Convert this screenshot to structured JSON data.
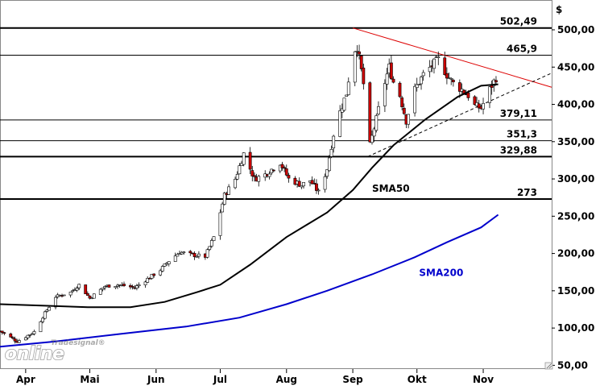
{
  "chart_data": {
    "type": "candlestick",
    "currency_label": "$",
    "y_axis": {
      "min": 45,
      "max": 540,
      "position": "right",
      "ticks": [
        50,
        100,
        150,
        200,
        250,
        300,
        350,
        400,
        450,
        500
      ],
      "tick_labels": [
        "50,00",
        "100,00",
        "150,00",
        "200,00",
        "250,00",
        "300,00",
        "350,00",
        "400,00",
        "450,00",
        "500,00"
      ]
    },
    "x_axis": {
      "start": "2024-03-20",
      "end": "2024-12-03",
      "ticks": [
        {
          "date": "2024-04-01",
          "label": "Apr"
        },
        {
          "date": "2024-05-01",
          "label": "Mai"
        },
        {
          "date": "2024-06-01",
          "label": "Jun"
        },
        {
          "date": "2024-07-01",
          "label": "Jul"
        },
        {
          "date": "2024-08-01",
          "label": "Aug"
        },
        {
          "date": "2024-09-01",
          "label": "Sep"
        },
        {
          "date": "2024-10-01",
          "label": "Okt"
        },
        {
          "date": "2024-11-01",
          "label": "Nov"
        }
      ]
    },
    "grid": false,
    "levels": [
      {
        "value": 502.49,
        "label": "502,49",
        "style": "bold"
      },
      {
        "value": 465.9,
        "label": "465,9",
        "style": "normal"
      },
      {
        "value": 379.11,
        "label": "379,11",
        "style": "normal"
      },
      {
        "value": 351.3,
        "label": "351,3",
        "style": "normal"
      },
      {
        "value": 329.88,
        "label": "329,88",
        "style": "bold"
      },
      {
        "value": 273,
        "label": "273",
        "style": "bold"
      }
    ],
    "price_anchors": [
      [
        "2024-03-20",
        96
      ],
      [
        "2024-03-28",
        82
      ],
      [
        "2024-04-05",
        95
      ],
      [
        "2024-04-10",
        120
      ],
      [
        "2024-04-15",
        142
      ],
      [
        "2024-04-22",
        148
      ],
      [
        "2024-04-26",
        158
      ],
      [
        "2024-05-01",
        140
      ],
      [
        "2024-05-08",
        156
      ],
      [
        "2024-05-15",
        158
      ],
      [
        "2024-05-22",
        154
      ],
      [
        "2024-05-28",
        166
      ],
      [
        "2024-06-03",
        178
      ],
      [
        "2024-06-07",
        190
      ],
      [
        "2024-06-12",
        202
      ],
      [
        "2024-06-18",
        198
      ],
      [
        "2024-06-24",
        196
      ],
      [
        "2024-06-28",
        222
      ],
      [
        "2024-07-03",
        278
      ],
      [
        "2024-07-08",
        300
      ],
      [
        "2024-07-12",
        334
      ],
      [
        "2024-07-17",
        300
      ],
      [
        "2024-07-22",
        306
      ],
      [
        "2024-07-29",
        322
      ],
      [
        "2024-08-02",
        300
      ],
      [
        "2024-08-08",
        292
      ],
      [
        "2024-08-12",
        298
      ],
      [
        "2024-08-16",
        282
      ],
      [
        "2024-08-20",
        314
      ],
      [
        "2024-08-23",
        360
      ],
      [
        "2024-08-26",
        390
      ],
      [
        "2024-08-29",
        415
      ],
      [
        "2024-09-01",
        470
      ],
      [
        "2024-09-03",
        478
      ],
      [
        "2024-09-05",
        445
      ],
      [
        "2024-09-07",
        410
      ],
      [
        "2024-09-09",
        345
      ],
      [
        "2024-09-12",
        380
      ],
      [
        "2024-09-15",
        420
      ],
      [
        "2024-09-18",
        450
      ],
      [
        "2024-09-20",
        430
      ],
      [
        "2024-09-23",
        412
      ],
      [
        "2024-09-26",
        378
      ],
      [
        "2024-09-30",
        420
      ],
      [
        "2024-10-04",
        440
      ],
      [
        "2024-10-08",
        452
      ],
      [
        "2024-10-11",
        460
      ],
      [
        "2024-10-15",
        440
      ],
      [
        "2024-10-18",
        428
      ],
      [
        "2024-10-22",
        420
      ],
      [
        "2024-10-25",
        412
      ],
      [
        "2024-10-28",
        398
      ],
      [
        "2024-10-31",
        395
      ],
      [
        "2024-11-04",
        420
      ],
      [
        "2024-11-07",
        436
      ]
    ],
    "series": [
      {
        "name": "SMA50",
        "color": "#000000",
        "label_point": {
          "date": "2024-09-10",
          "value": 283
        },
        "points": [
          [
            "2024-03-20",
            132
          ],
          [
            "2024-04-10",
            130
          ],
          [
            "2024-04-30",
            128
          ],
          [
            "2024-05-20",
            128
          ],
          [
            "2024-06-05",
            135
          ],
          [
            "2024-06-20",
            148
          ],
          [
            "2024-07-01",
            158
          ],
          [
            "2024-07-15",
            185
          ],
          [
            "2024-08-01",
            222
          ],
          [
            "2024-08-20",
            255
          ],
          [
            "2024-09-01",
            285
          ],
          [
            "2024-09-10",
            315
          ],
          [
            "2024-09-20",
            345
          ],
          [
            "2024-10-05",
            380
          ],
          [
            "2024-10-20",
            410
          ],
          [
            "2024-10-31",
            425
          ],
          [
            "2024-11-08",
            427
          ]
        ]
      },
      {
        "name": "SMA200",
        "color": "#0000cc",
        "label_point": {
          "date": "2024-10-02",
          "value": 170
        },
        "points": [
          [
            "2024-03-20",
            75
          ],
          [
            "2024-04-15",
            82
          ],
          [
            "2024-05-15",
            92
          ],
          [
            "2024-06-15",
            102
          ],
          [
            "2024-07-10",
            114
          ],
          [
            "2024-08-01",
            132
          ],
          [
            "2024-08-20",
            150
          ],
          [
            "2024-09-10",
            172
          ],
          [
            "2024-09-30",
            195
          ],
          [
            "2024-10-15",
            215
          ],
          [
            "2024-10-31",
            235
          ],
          [
            "2024-11-08",
            252
          ]
        ]
      }
    ],
    "trendlines": [
      {
        "kind": "resistance",
        "color": "#dd0000",
        "dash": false,
        "from": {
          "date": "2024-09-01",
          "value": 502.49
        },
        "to": {
          "date": "2024-12-03",
          "value": 423
        }
      },
      {
        "kind": "support",
        "color": "#000000",
        "dash": true,
        "from": {
          "date": "2024-09-08",
          "value": 330
        },
        "to": {
          "date": "2024-12-03",
          "value": 442
        }
      }
    ],
    "watermark": {
      "brand_small": "Tradesignal®",
      "brand_big": "online"
    }
  }
}
